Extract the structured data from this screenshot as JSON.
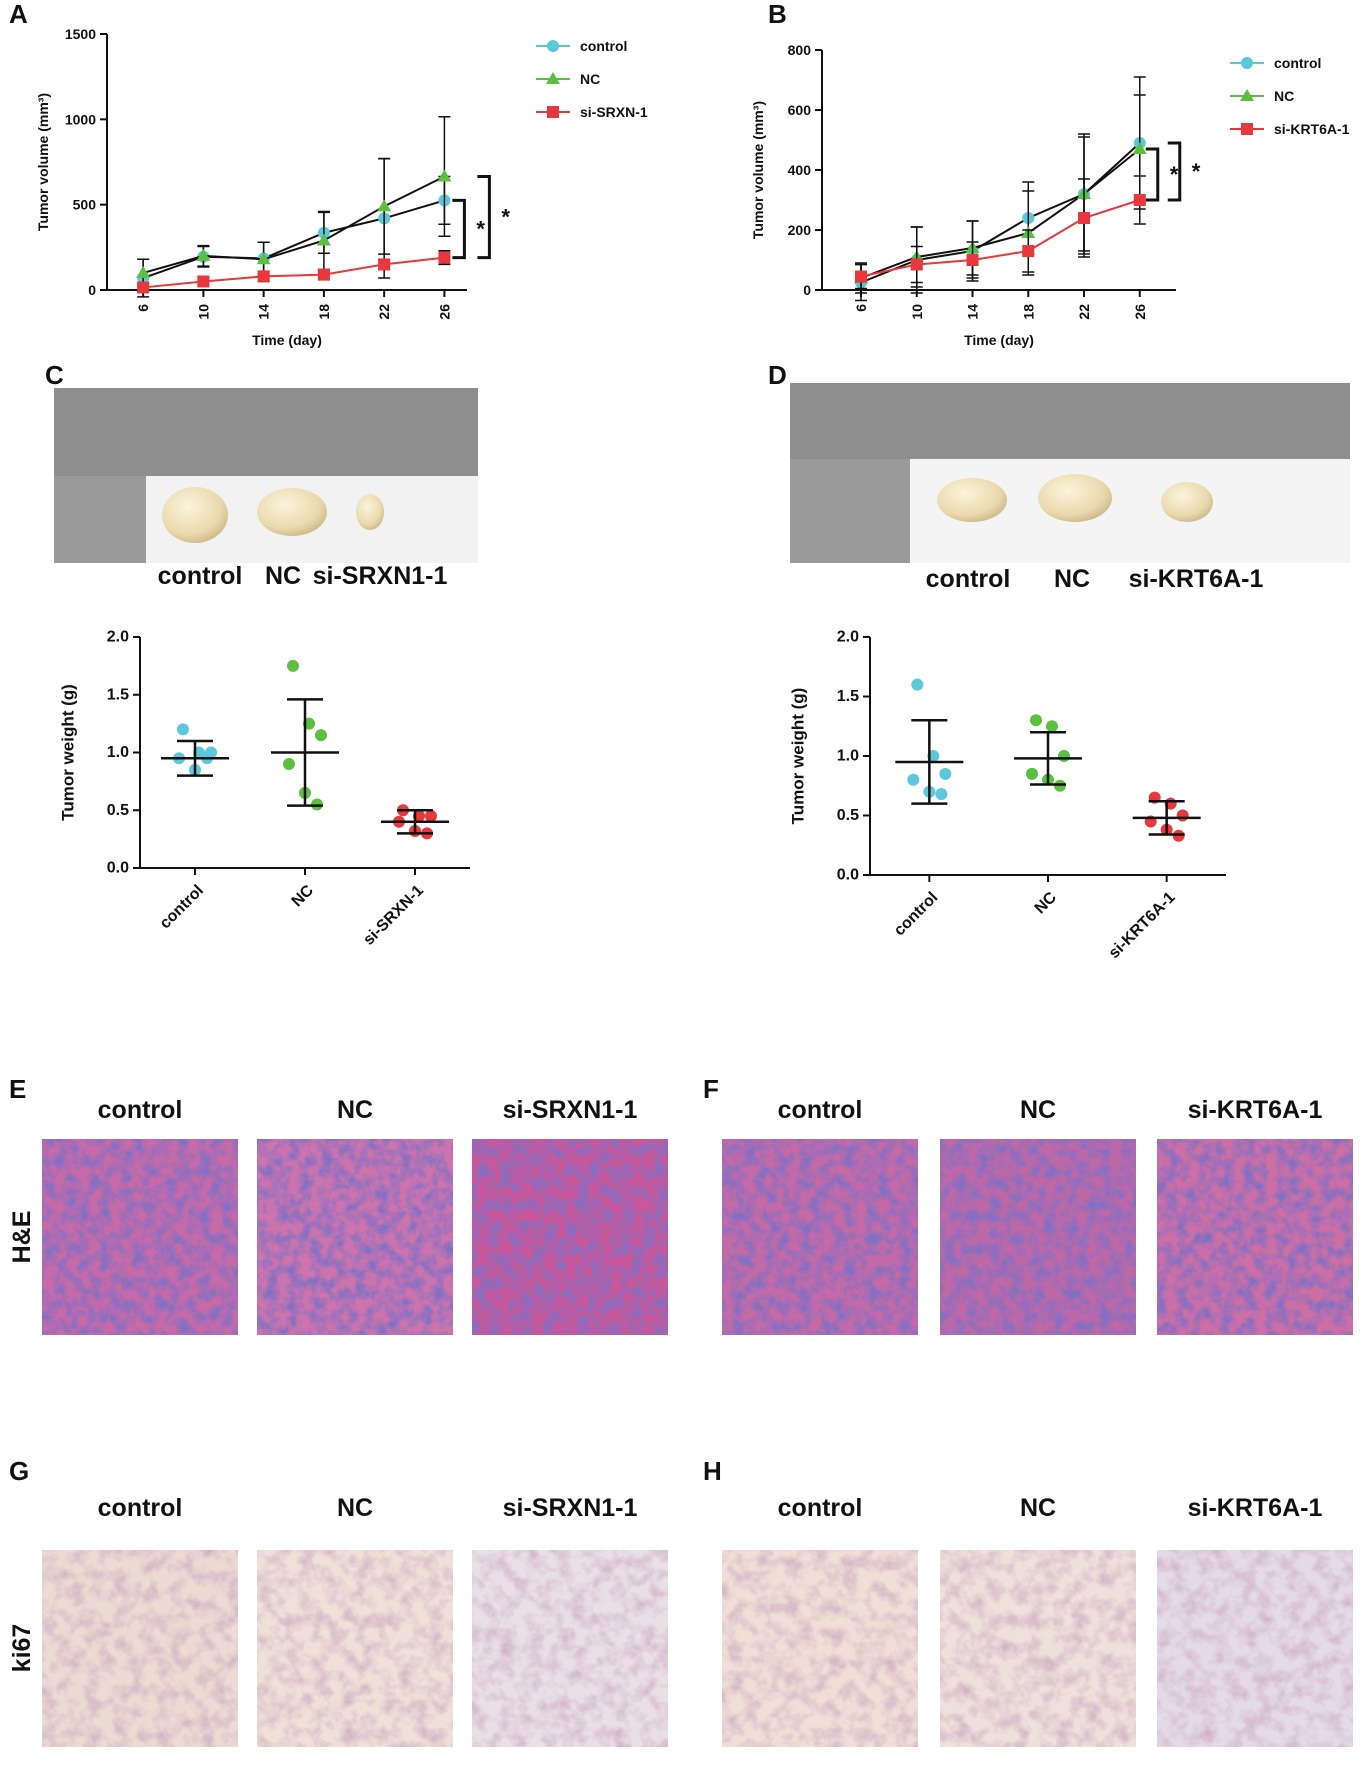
{
  "panel_labels": [
    "A",
    "B",
    "C",
    "D",
    "E",
    "F",
    "G",
    "H"
  ],
  "chart_data": [
    {
      "type": "line",
      "x_label": "Time (day)",
      "y_label": "Tumor volume (mm³)",
      "x": [
        6,
        10,
        14,
        18,
        22,
        26
      ],
      "xlim": [
        3.6,
        27.5
      ],
      "xticks": [
        6,
        10,
        14,
        18,
        22,
        26
      ],
      "ylim": [
        0,
        1500
      ],
      "yticks": [
        0,
        500,
        1000,
        1500
      ],
      "series": [
        {
          "name": "control",
          "color": "#5bc8dc",
          "marker": "circle",
          "values": [
            70,
            195,
            185,
            335,
            420,
            525
          ],
          "errors": [
            110,
            60,
            95,
            120,
            350,
            140
          ]
        },
        {
          "name": "NC",
          "color": "#5cbf3f",
          "marker": "triangle",
          "values": [
            100,
            200,
            180,
            290,
            490,
            665
          ],
          "errors": [
            80,
            60,
            100,
            170,
            280,
            350
          ]
        },
        {
          "name": "si-SRXN-1",
          "color": "#e8383d",
          "marker": "square",
          "values": [
            15,
            50,
            80,
            90,
            150,
            190
          ],
          "errors": [
            20,
            20,
            30,
            30,
            30,
            40
          ]
        }
      ],
      "annotations": [
        "*",
        "*"
      ]
    },
    {
      "type": "line",
      "x_label": "Time (day)",
      "y_label": "Tumor volume (mm³)",
      "x": [
        6,
        10,
        14,
        18,
        22,
        26
      ],
      "xlim": [
        3.2,
        28.6
      ],
      "xticks": [
        6,
        10,
        14,
        18,
        22,
        26
      ],
      "ylim": [
        0,
        800
      ],
      "yticks": [
        0,
        200,
        400,
        600,
        800
      ],
      "series": [
        {
          "name": "control",
          "color": "#5bc8dc",
          "marker": "circle",
          "values": [
            25,
            100,
            130,
            240,
            320,
            490
          ],
          "errors": [
            60,
            110,
            100,
            120,
            200,
            220
          ]
        },
        {
          "name": "NC",
          "color": "#5cbf3f",
          "marker": "triangle",
          "values": [
            40,
            110,
            140,
            190,
            320,
            470
          ],
          "errors": [
            50,
            100,
            90,
            140,
            190,
            180
          ]
        },
        {
          "name": "si-KRT6A-1",
          "color": "#e8383d",
          "marker": "square",
          "values": [
            45,
            85,
            100,
            130,
            240,
            300
          ],
          "errors": [
            40,
            60,
            60,
            70,
            130,
            80
          ]
        }
      ],
      "annotations": [
        "*",
        "*"
      ]
    },
    {
      "type": "dot",
      "y_label": "Tumor weight (g)",
      "categories": [
        "control",
        "NC",
        "si-SRXN-1"
      ],
      "ylim": [
        0,
        2
      ],
      "yticks": [
        {
          "value": 0,
          "label": "0.0"
        },
        0.5,
        {
          "value": 1,
          "label": "1.0"
        },
        1.5,
        {
          "value": 2,
          "label": "2.0"
        }
      ],
      "groups": [
        {
          "color": "#5bc8dc",
          "values": [
            1.2,
            1.0,
            1.0,
            0.95,
            0.85,
            0.95
          ],
          "mean": 0.95,
          "sd": 0.15
        },
        {
          "color": "#5cbf3f",
          "values": [
            1.75,
            1.25,
            1.15,
            0.9,
            0.65,
            0.55
          ],
          "mean": 1.0,
          "sd": 0.46
        },
        {
          "color": "#e8383d",
          "values": [
            0.5,
            0.45,
            0.45,
            0.4,
            0.32,
            0.3
          ],
          "mean": 0.4,
          "sd": 0.1
        }
      ]
    },
    {
      "type": "dot",
      "y_label": "Tumor weight (g)",
      "categories": [
        "control",
        "NC",
        "si-KRT6A-1"
      ],
      "ylim": [
        0,
        2
      ],
      "yticks": [
        {
          "value": 0,
          "label": "0.0"
        },
        0.5,
        {
          "value": 1,
          "label": "1.0"
        },
        1.5,
        {
          "value": 2,
          "label": "2.0"
        }
      ],
      "groups": [
        {
          "color": "#5bc8dc",
          "values": [
            1.6,
            1.0,
            0.85,
            0.8,
            0.7,
            0.68
          ],
          "mean": 0.95,
          "sd": 0.35
        },
        {
          "color": "#5cbf3f",
          "values": [
            1.3,
            1.25,
            1.0,
            0.85,
            0.8,
            0.75
          ],
          "mean": 0.98,
          "sd": 0.22
        },
        {
          "color": "#e8383d",
          "values": [
            0.65,
            0.6,
            0.5,
            0.45,
            0.38,
            0.33
          ],
          "mean": 0.48,
          "sd": 0.14
        }
      ]
    }
  ],
  "photos": [
    {
      "labels": [
        "control",
        "NC",
        "si-SRXN1-1"
      ]
    },
    {
      "labels": [
        "control",
        "NC",
        "si-KRT6A-1"
      ]
    }
  ],
  "histology": [
    {
      "row_label": "H&E",
      "panels": [
        {
          "labels": [
            "control",
            "NC",
            "si-SRXN1-1"
          ]
        },
        {
          "labels": [
            "control",
            "NC",
            "si-KRT6A-1"
          ]
        }
      ]
    },
    {
      "row_label": "ki67",
      "panels": [
        {
          "labels": [
            "control",
            "NC",
            "si-SRXN1-1"
          ]
        },
        {
          "labels": [
            "control",
            "NC",
            "si-KRT6A-1"
          ]
        }
      ]
    }
  ]
}
